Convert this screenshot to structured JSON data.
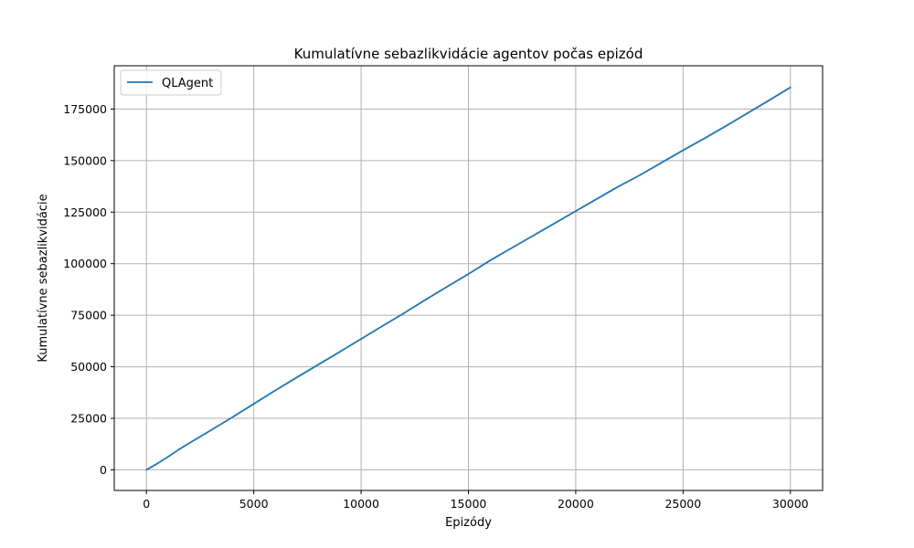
{
  "chart_data": {
    "type": "line",
    "title": "Kumulatívne sebazlikvidácie agentov počas epizód",
    "xlabel": "Epizódy",
    "ylabel": "Kumulatívne sebazlikvidácie",
    "xlim": [
      -1500,
      31500
    ],
    "ylim": [
      -10000,
      196000
    ],
    "xticks": [
      0,
      5000,
      10000,
      15000,
      20000,
      25000,
      30000
    ],
    "yticks": [
      0,
      25000,
      50000,
      75000,
      100000,
      125000,
      150000,
      175000
    ],
    "xtick_labels": [
      "0",
      "5000",
      "10000",
      "15000",
      "20000",
      "25000",
      "30000"
    ],
    "ytick_labels": [
      "0",
      "25000",
      "50000",
      "75000",
      "100000",
      "125000",
      "150000",
      "175000"
    ],
    "grid": true,
    "legend_position": "top-left",
    "series": [
      {
        "name": "QLAgent",
        "color": "#1f77b4",
        "x": [
          0,
          500,
          1000,
          1500,
          2000,
          3000,
          4000,
          5000,
          6000,
          7000,
          8000,
          9000,
          10000,
          11000,
          12000,
          13000,
          14000,
          15000,
          16000,
          17000,
          18000,
          19000,
          20000,
          21000,
          22000,
          23000,
          24000,
          25000,
          26000,
          27000,
          28000,
          29000,
          30000
        ],
        "y": [
          0,
          3000,
          6300,
          9800,
          13000,
          19200,
          25500,
          32000,
          38500,
          44800,
          51000,
          57200,
          63500,
          69800,
          76000,
          82500,
          88800,
          95000,
          101500,
          107500,
          113500,
          119500,
          125500,
          131500,
          137500,
          143000,
          149000,
          155000,
          160800,
          166800,
          173000,
          179200,
          185500
        ]
      }
    ]
  }
}
